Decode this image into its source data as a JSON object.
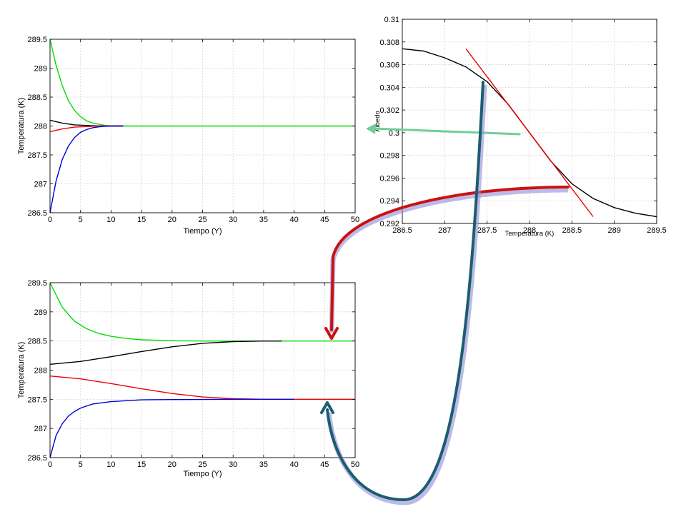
{
  "chart_data": [
    {
      "id": "equilibrium",
      "type": "line",
      "title": "",
      "xlabel": "Tiempo (Y)",
      "ylabel": "Temperatura (K)",
      "xlim": [
        0,
        50
      ],
      "ylim": [
        286.5,
        289.5
      ],
      "grid": true,
      "xticks": [
        "0",
        "5",
        "10",
        "15",
        "20",
        "25",
        "30",
        "35",
        "40",
        "45",
        "50"
      ],
      "yticks": [
        "286.5",
        "287",
        "287.5",
        "288",
        "288.5",
        "289",
        "289.5"
      ],
      "series": [
        {
          "color": "#00dd00",
          "x": [
            0,
            1,
            2,
            3,
            4,
            5,
            6,
            7,
            8,
            9,
            10,
            12,
            50
          ],
          "y": [
            289.5,
            289.05,
            288.7,
            288.44,
            288.27,
            288.16,
            288.09,
            288.05,
            288.03,
            288.01,
            288.0,
            288.0,
            288.0
          ]
        },
        {
          "color": "#000000",
          "x": [
            0,
            2,
            4,
            6,
            8,
            10,
            12
          ],
          "y": [
            288.1,
            288.05,
            288.02,
            288.01,
            288.0,
            288.0,
            288.0
          ]
        },
        {
          "color": "#ee0000",
          "x": [
            0,
            2,
            4,
            6,
            8,
            10,
            12
          ],
          "y": [
            287.9,
            287.95,
            287.98,
            287.99,
            288.0,
            288.0,
            288.0
          ]
        },
        {
          "color": "#0000dd",
          "x": [
            0,
            1,
            2,
            3,
            4,
            5,
            6,
            7,
            8,
            9,
            10,
            12
          ],
          "y": [
            286.5,
            287.05,
            287.42,
            287.65,
            287.8,
            287.89,
            287.94,
            287.97,
            287.985,
            287.995,
            288.0,
            288.0
          ]
        }
      ]
    },
    {
      "id": "albedo",
      "type": "line",
      "title": "",
      "xlabel": "Temperatura (K)",
      "ylabel": "Albedo",
      "xlim": [
        286.5,
        289.5
      ],
      "ylim": [
        0.292,
        0.31
      ],
      "grid": true,
      "xticks": [
        "286.5",
        "287",
        "287.5",
        "288",
        "288.5",
        "289",
        "289.5"
      ],
      "yticks": [
        "0.292",
        "0.294",
        "0.296",
        "0.298",
        "0.3",
        "0.302",
        "0.304",
        "0.306",
        "0.308",
        "0.31"
      ],
      "series": [
        {
          "color": "#000000",
          "x": [
            286.5,
            286.75,
            287.0,
            287.25,
            287.5,
            287.75,
            288.0,
            288.25,
            288.5,
            288.75,
            289.0,
            289.25,
            289.5
          ],
          "y": [
            0.3074,
            0.3072,
            0.3066,
            0.3058,
            0.3045,
            0.3025,
            0.3,
            0.2975,
            0.2955,
            0.2942,
            0.2934,
            0.2929,
            0.2926
          ]
        },
        {
          "color": "#ee0000",
          "x": [
            287.25,
            288.75
          ],
          "y": [
            0.3074,
            0.2926
          ]
        }
      ]
    },
    {
      "id": "bistable",
      "type": "line",
      "title": "",
      "xlabel": "Tiempo (Y)",
      "ylabel": "Temperatura (K)",
      "xlim": [
        0,
        50
      ],
      "ylim": [
        286.5,
        289.5
      ],
      "grid": true,
      "xticks": [
        "0",
        "5",
        "10",
        "15",
        "20",
        "25",
        "30",
        "35",
        "40",
        "45",
        "50"
      ],
      "yticks": [
        "286.5",
        "287",
        "287.5",
        "288",
        "288.5",
        "289",
        "289.5"
      ],
      "series": [
        {
          "color": "#00dd00",
          "x": [
            0,
            2,
            4,
            6,
            8,
            10,
            12,
            15,
            20,
            25,
            30,
            50
          ],
          "y": [
            289.5,
            289.08,
            288.84,
            288.71,
            288.63,
            288.58,
            288.55,
            288.52,
            288.505,
            288.5,
            288.5,
            288.5
          ]
        },
        {
          "color": "#000000",
          "x": [
            0,
            5,
            10,
            15,
            20,
            25,
            30,
            35,
            38
          ],
          "y": [
            288.1,
            288.15,
            288.23,
            288.32,
            288.4,
            288.46,
            288.49,
            288.5,
            288.5
          ]
        },
        {
          "color": "#ee0000",
          "x": [
            0,
            5,
            10,
            15,
            20,
            25,
            30,
            35,
            40,
            50
          ],
          "y": [
            287.9,
            287.85,
            287.77,
            287.68,
            287.6,
            287.54,
            287.51,
            287.5,
            287.5,
            287.5
          ]
        },
        {
          "color": "#0000dd",
          "x": [
            0,
            1,
            2,
            3,
            4,
            5,
            7,
            10,
            15,
            20,
            30,
            40
          ],
          "y": [
            286.5,
            286.88,
            287.08,
            287.21,
            287.29,
            287.35,
            287.42,
            287.46,
            287.49,
            287.495,
            287.5,
            287.5
          ]
        }
      ]
    }
  ],
  "arrows": {
    "green": "#6fcf97",
    "red": "#cc1111",
    "teal": "#1d5d70",
    "shadow": "#8e8ed8"
  }
}
